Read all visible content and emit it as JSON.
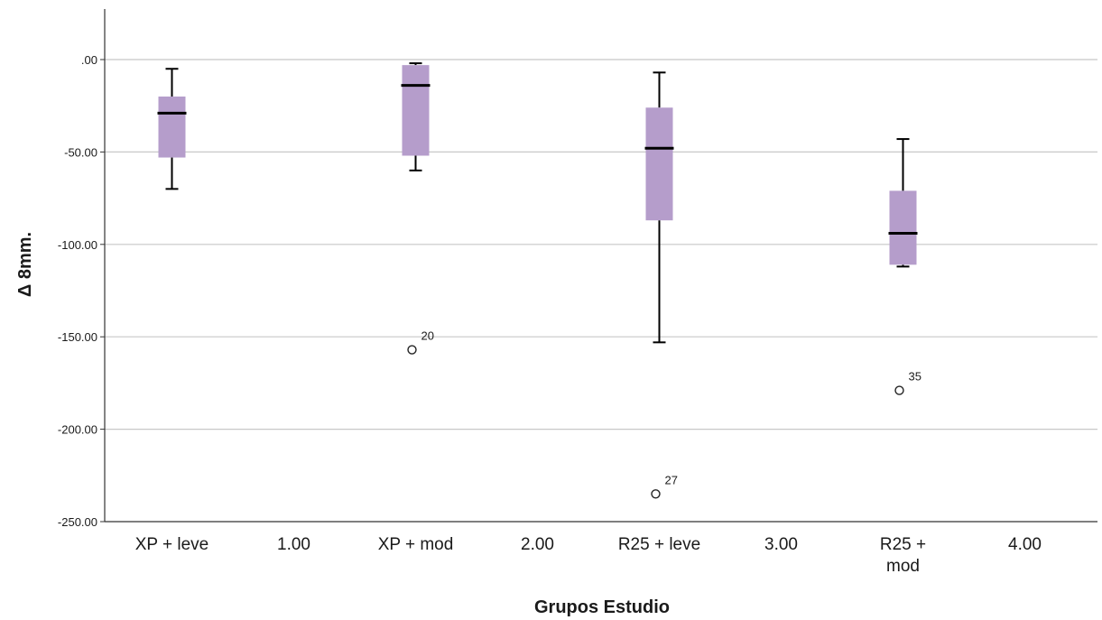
{
  "chart_data": {
    "type": "boxplot",
    "xlabel": "Grupos Estudio",
    "ylabel": "Δ 8mm.",
    "ylim": [
      -250,
      28
    ],
    "yticks": [
      0,
      -50,
      -100,
      -150,
      -200,
      -250
    ],
    "ytick_labels": [
      ".00",
      "-50.00",
      "-100.00",
      "-150.00",
      "-200.00",
      "-250.00"
    ],
    "grid": "horizontal",
    "box_color": "#b59dcb",
    "categories": [
      {
        "label": "XP + leve",
        "type": "group"
      },
      {
        "label": "1.00",
        "type": "empty"
      },
      {
        "label": "XP + mod",
        "type": "group"
      },
      {
        "label": "2.00",
        "type": "empty"
      },
      {
        "label": "R25 + leve",
        "type": "group"
      },
      {
        "label": "3.00",
        "type": "empty"
      },
      {
        "label": "R25 +\nmod",
        "type": "group"
      },
      {
        "label": "4.00",
        "type": "empty"
      }
    ],
    "series": [
      {
        "category": "XP + leve",
        "min": -70,
        "q1": -53,
        "median": -29,
        "q3": -20,
        "max": -5,
        "outliers": []
      },
      {
        "category": "XP + mod",
        "min": -60,
        "q1": -52,
        "median": -14,
        "q3": -3,
        "max": -2,
        "outliers": [
          {
            "value": -157,
            "label": "20"
          }
        ]
      },
      {
        "category": "R25 + leve",
        "min": -153,
        "q1": -87,
        "median": -48,
        "q3": -26,
        "max": -7,
        "outliers": [
          {
            "value": -235,
            "label": "27"
          }
        ]
      },
      {
        "category": "R25 +\nmod",
        "min": -112,
        "q1": -111,
        "median": -94,
        "q3": -71,
        "max": -43,
        "outliers": [
          {
            "value": -179,
            "label": "35"
          }
        ]
      }
    ]
  }
}
